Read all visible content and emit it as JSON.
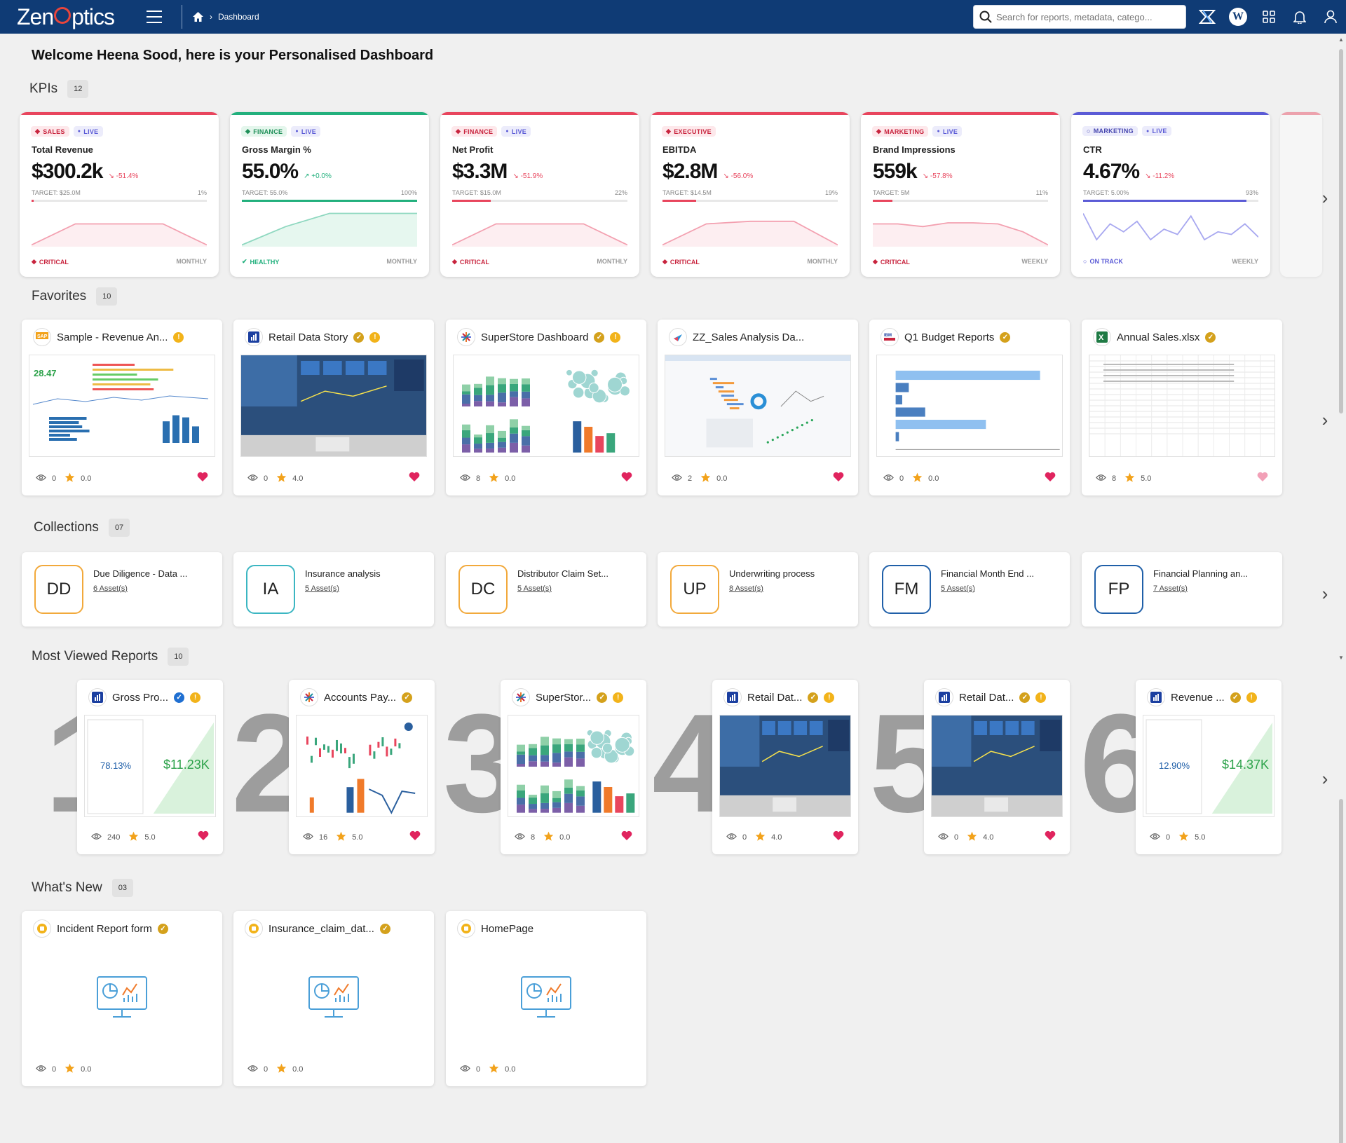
{
  "app": {
    "logo": "ZenOptics",
    "breadcrumb": "Dashboard"
  },
  "search": {
    "placeholder": "Search for reports, metadata, catego..."
  },
  "welcome": "Welcome Heena Sood, here is your Personalised Dashboard",
  "sections": {
    "kpis": {
      "title": "KPIs",
      "count": "12"
    },
    "favorites": {
      "title": "Favorites",
      "count": "10"
    },
    "collections": {
      "title": "Collections",
      "count": "07"
    },
    "most_viewed": {
      "title": "Most Viewed Reports",
      "count": "10"
    },
    "whats_new": {
      "title": "What's New",
      "count": "03"
    }
  },
  "kpis": [
    {
      "cat": "SALES",
      "live": "LIVE",
      "name": "Total Revenue",
      "value": "$300.2k",
      "change": "-51.4%",
      "target": "TARGET: $25.0M",
      "pct": "1%",
      "progress": 0.01,
      "status": "CRITICAL",
      "period": "MONTHLY",
      "color": "#e8455d"
    },
    {
      "cat": "FINANCE",
      "live": "LIVE",
      "name": "Gross Margin %",
      "value": "55.0%",
      "change": "+0.0%",
      "target": "TARGET: 55.0%",
      "pct": "100%",
      "progress": 1.0,
      "status": "HEALTHY",
      "period": "MONTHLY",
      "color": "#22b07d"
    },
    {
      "cat": "FINANCE",
      "live": "LIVE",
      "name": "Net Profit",
      "value": "$3.3M",
      "change": "-51.9%",
      "target": "TARGET: $15.0M",
      "pct": "22%",
      "progress": 0.22,
      "status": "CRITICAL",
      "period": "MONTHLY",
      "color": "#e8455d"
    },
    {
      "cat": "EXECUTIVE",
      "live": "",
      "name": "EBITDA",
      "value": "$2.8M",
      "change": "-56.0%",
      "target": "TARGET: $14.5M",
      "pct": "19%",
      "progress": 0.19,
      "status": "CRITICAL",
      "period": "MONTHLY",
      "color": "#e8455d"
    },
    {
      "cat": "MARKETING",
      "live": "LIVE",
      "name": "Brand Impressions",
      "value": "559k",
      "change": "-57.8%",
      "target": "TARGET: 5M",
      "pct": "11%",
      "progress": 0.11,
      "status": "CRITICAL",
      "period": "WEEKLY",
      "color": "#e8455d"
    },
    {
      "cat": "MARKETING",
      "live": "LIVE",
      "name": "CTR",
      "value": "4.67%",
      "change": "-11.2%",
      "target": "TARGET: 5.00%",
      "pct": "93%",
      "progress": 0.93,
      "status": "ON TRACK",
      "period": "WEEKLY",
      "color": "#5b5bd6"
    }
  ],
  "favorites": [
    {
      "title": "Sample - Revenue An...",
      "views": "0",
      "rating": "0.0"
    },
    {
      "title": "Retail Data Story",
      "views": "0",
      "rating": "4.0"
    },
    {
      "title": "SuperStore Dashboard",
      "views": "8",
      "rating": "0.0"
    },
    {
      "title": "ZZ_Sales Analysis Da...",
      "views": "2",
      "rating": "0.0"
    },
    {
      "title": "Q1 Budget Reports",
      "views": "0",
      "rating": "0.0"
    },
    {
      "title": "Annual Sales.xlsx",
      "views": "8",
      "rating": "5.0"
    }
  ],
  "collections": [
    {
      "initials": "DD",
      "name": "Due Diligence - Data ...",
      "assets": "6 Asset(s)",
      "color": "#f2a93b"
    },
    {
      "initials": "IA",
      "name": "Insurance analysis",
      "assets": "5 Asset(s)",
      "color": "#3bb6c2"
    },
    {
      "initials": "DC",
      "name": "Distributor Claim Set...",
      "assets": "5 Asset(s)",
      "color": "#f2a93b"
    },
    {
      "initials": "UP",
      "name": "Underwriting process",
      "assets": "8 Asset(s)",
      "color": "#f2a93b"
    },
    {
      "initials": "FM",
      "name": "Financial Month End ...",
      "assets": "5 Asset(s)",
      "color": "#1f5fa8"
    },
    {
      "initials": "FP",
      "name": "Financial Planning an...",
      "assets": "7 Asset(s)",
      "color": "#1f5fa8"
    }
  ],
  "most_viewed": [
    {
      "rank": "1",
      "title": "Gross Pro...",
      "views": "240",
      "rating": "5.0",
      "kpi_a": "78.13%",
      "kpi_b": "$11.23K"
    },
    {
      "rank": "2",
      "title": "Accounts Pay...",
      "views": "16",
      "rating": "5.0"
    },
    {
      "rank": "3",
      "title": "SuperStor...",
      "views": "8",
      "rating": "0.0"
    },
    {
      "rank": "4",
      "title": "Retail Dat...",
      "views": "0",
      "rating": "4.0"
    },
    {
      "rank": "5",
      "title": "Retail Dat...",
      "views": "0",
      "rating": "4.0"
    },
    {
      "rank": "6",
      "title": "Revenue ...",
      "views": "0",
      "rating": "5.0",
      "kpi_a": "12.90%",
      "kpi_b": "$14.37K"
    }
  ],
  "whats_new": [
    {
      "title": "Incident Report form",
      "views": "0",
      "rating": "0.0"
    },
    {
      "title": "Insurance_claim_dat...",
      "views": "0",
      "rating": "0.0"
    },
    {
      "title": "HomePage",
      "views": "0",
      "rating": "0.0"
    }
  ],
  "icons": {
    "home": "home-icon",
    "search": "search-icon",
    "menu": "hamburger-icon",
    "apps": "apps-grid-icon",
    "bell": "bell-icon",
    "user": "user-icon",
    "eye": "eye-icon",
    "star": "star-icon",
    "heart": "heart-icon",
    "next": "chevron-right-icon"
  },
  "colors": {
    "topbar": "#0f3b75",
    "critical": "#e8455d",
    "healthy": "#22b07d",
    "on_track": "#5b5bd6",
    "favorite": "#e0245e",
    "star": "#f2a21b"
  }
}
